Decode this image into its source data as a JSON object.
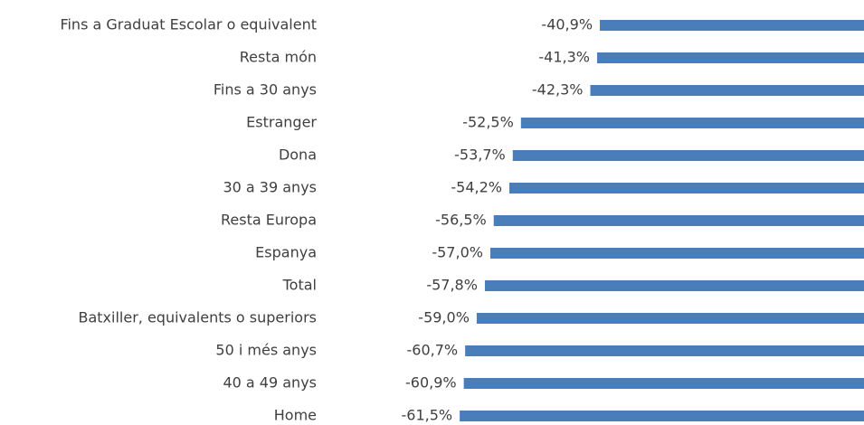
{
  "chart_data": {
    "type": "bar",
    "orientation": "horizontal",
    "color": "#4a7ebb",
    "categories": [
      "Fins a Graduat Escolar o equivalent",
      "Resta món",
      "Fins a 30 anys",
      "Estranger",
      "Dona",
      "30 a 39 anys",
      "Resta Europa",
      "Espanya",
      "Total",
      "Batxiller, equivalents o superiors",
      "50 i més anys",
      "40 a 49 anys",
      "Home"
    ],
    "values": [
      -40.9,
      -41.3,
      -42.3,
      -52.5,
      -53.7,
      -54.2,
      -56.5,
      -57.0,
      -57.8,
      -59.0,
      -60.7,
      -60.9,
      -61.5
    ],
    "value_labels": [
      "-40,9%",
      "-41,3%",
      "-42,3%",
      "-52,5%",
      "-53,7%",
      "-54,2%",
      "-56,5%",
      "-57,0%",
      "-57,8%",
      "-59,0%",
      "-60,7%",
      "-60,9%",
      "-61,5%"
    ]
  }
}
